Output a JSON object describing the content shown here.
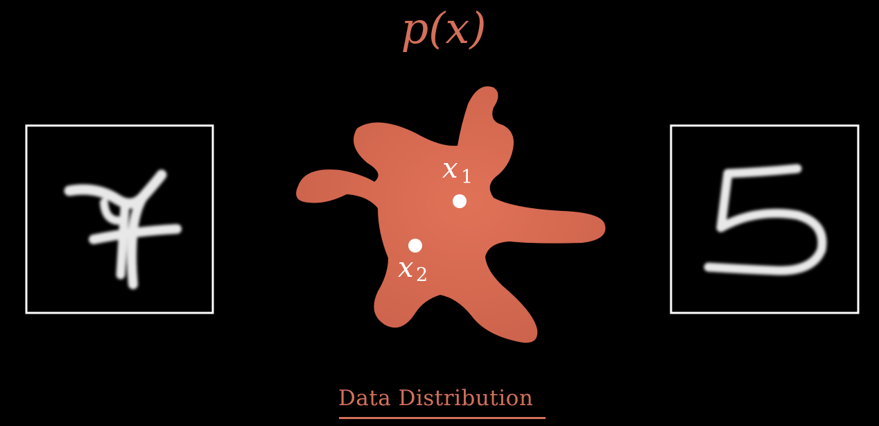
{
  "title": {
    "text": "p(x)",
    "color": "#d4705a"
  },
  "blob": {
    "color": "#e07257",
    "shade_color": "#c9604a"
  },
  "points": [
    {
      "label": "x",
      "subscript": "1",
      "color": "#ffffff"
    },
    {
      "label": "x",
      "subscript": "2",
      "color": "#ffffff"
    }
  ],
  "samples": [
    {
      "digit": "7",
      "frame_color": "#ffffff"
    },
    {
      "digit": "5",
      "frame_color": "#ffffff"
    }
  ],
  "caption": {
    "text": "Data Distribution",
    "color": "#d4705a"
  }
}
